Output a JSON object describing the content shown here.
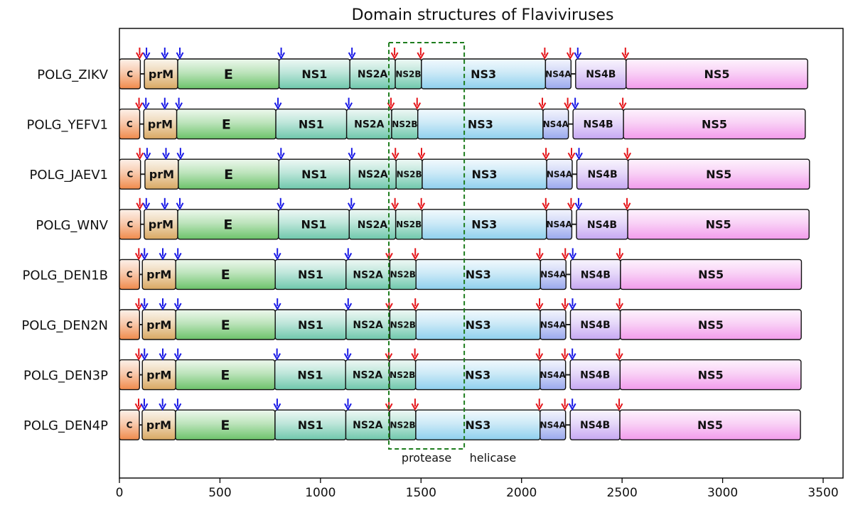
{
  "chart_data": {
    "type": "domain_map",
    "title": "Domain structures of Flaviviruses",
    "xlim": [
      0,
      3550
    ],
    "xticks": [
      0,
      500,
      1000,
      1500,
      2000,
      2500,
      3000,
      3500
    ],
    "grid": false,
    "domain_colors": {
      "C": "#f08a4b",
      "prM": "#d9a862",
      "E": "#6cc36a",
      "NS1": "#6fc8ac",
      "NS2A": "#6fc8ac",
      "NS2B": "#6fc8ac",
      "NS3": "#8fd0ee",
      "NS4A": "#9aa9ee",
      "NS4B": "#c7a8f2",
      "NS5": "#f29bec"
    },
    "arrow_colors": {
      "protease": "#e4161b",
      "host": "#1a1ae6"
    },
    "proteins": [
      {
        "name": "POLG_ZIKV",
        "domains": [
          {
            "label": "C",
            "start": 0,
            "end": 104
          },
          {
            "label": "prM",
            "start": 124,
            "end": 290
          },
          {
            "label": "E",
            "start": 290,
            "end": 794
          },
          {
            "label": "NS1",
            "start": 794,
            "end": 1146
          },
          {
            "label": "NS2A",
            "start": 1146,
            "end": 1372
          },
          {
            "label": "NS2B",
            "start": 1372,
            "end": 1502
          },
          {
            "label": "NS3",
            "start": 1502,
            "end": 2119
          },
          {
            "label": "NS4A",
            "start": 2119,
            "end": 2246
          },
          {
            "label": "NS4B",
            "start": 2269,
            "end": 2520
          },
          {
            "label": "NS5",
            "start": 2520,
            "end": 3423
          }
        ],
        "protease_sites": [
          104,
          1372,
          1502,
          2119,
          2246,
          2520
        ],
        "host_sites": [
          124,
          215,
          290,
          794,
          1146,
          2269
        ]
      },
      {
        "name": "POLG_YEFV1",
        "domains": [
          {
            "label": "C",
            "start": 0,
            "end": 101
          },
          {
            "label": "prM",
            "start": 121,
            "end": 285
          },
          {
            "label": "E",
            "start": 285,
            "end": 778
          },
          {
            "label": "NS1",
            "start": 778,
            "end": 1130
          },
          {
            "label": "NS2A",
            "start": 1130,
            "end": 1354
          },
          {
            "label": "NS2B",
            "start": 1354,
            "end": 1484
          },
          {
            "label": "NS3",
            "start": 1484,
            "end": 2107
          },
          {
            "label": "NS4A",
            "start": 2107,
            "end": 2233
          },
          {
            "label": "NS4B",
            "start": 2256,
            "end": 2507
          },
          {
            "label": "NS5",
            "start": 2507,
            "end": 3411
          }
        ],
        "protease_sites": [
          101,
          1354,
          1484,
          2107,
          2233,
          2507
        ],
        "host_sites": [
          121,
          215,
          285,
          778,
          1130,
          2256
        ]
      },
      {
        "name": "POLG_JAEV1",
        "domains": [
          {
            "label": "C",
            "start": 0,
            "end": 105
          },
          {
            "label": "prM",
            "start": 127,
            "end": 293
          },
          {
            "label": "E",
            "start": 293,
            "end": 793
          },
          {
            "label": "NS1",
            "start": 793,
            "end": 1145
          },
          {
            "label": "NS2A",
            "start": 1145,
            "end": 1376
          },
          {
            "label": "NS2B",
            "start": 1376,
            "end": 1506
          },
          {
            "label": "NS3",
            "start": 1506,
            "end": 2125
          },
          {
            "label": "NS4A",
            "start": 2125,
            "end": 2252
          },
          {
            "label": "NS4B",
            "start": 2275,
            "end": 2530
          },
          {
            "label": "NS5",
            "start": 2530,
            "end": 3432
          }
        ],
        "protease_sites": [
          105,
          1376,
          1506,
          2125,
          2252,
          2530
        ],
        "host_sites": [
          127,
          221,
          293,
          793,
          1145,
          2275
        ]
      },
      {
        "name": "POLG_WNV",
        "domains": [
          {
            "label": "C",
            "start": 0,
            "end": 105
          },
          {
            "label": "prM",
            "start": 123,
            "end": 290
          },
          {
            "label": "E",
            "start": 290,
            "end": 791
          },
          {
            "label": "NS1",
            "start": 791,
            "end": 1143
          },
          {
            "label": "NS2A",
            "start": 1143,
            "end": 1374
          },
          {
            "label": "NS2B",
            "start": 1374,
            "end": 1505
          },
          {
            "label": "NS3",
            "start": 1505,
            "end": 2124
          },
          {
            "label": "NS4A",
            "start": 2124,
            "end": 2250
          },
          {
            "label": "NS4B",
            "start": 2273,
            "end": 2528
          },
          {
            "label": "NS5",
            "start": 2528,
            "end": 3430
          }
        ],
        "protease_sites": [
          105,
          1374,
          1505,
          2124,
          2250,
          2528
        ],
        "host_sites": [
          123,
          215,
          290,
          791,
          1143,
          2273
        ]
      },
      {
        "name": "POLG_DEN1B",
        "domains": [
          {
            "label": "C",
            "start": 0,
            "end": 100
          },
          {
            "label": "prM",
            "start": 114,
            "end": 280
          },
          {
            "label": "E",
            "start": 280,
            "end": 775
          },
          {
            "label": "NS1",
            "start": 775,
            "end": 1127
          },
          {
            "label": "NS2A",
            "start": 1127,
            "end": 1345
          },
          {
            "label": "NS2B",
            "start": 1345,
            "end": 1475
          },
          {
            "label": "NS3",
            "start": 1475,
            "end": 2094
          },
          {
            "label": "NS4A",
            "start": 2094,
            "end": 2221
          },
          {
            "label": "NS4B",
            "start": 2244,
            "end": 2492
          },
          {
            "label": "NS5",
            "start": 2492,
            "end": 3392
          }
        ],
        "protease_sites": [
          100,
          1345,
          1475,
          2094,
          2221,
          2492
        ],
        "host_sites": [
          114,
          205,
          280,
          775,
          1127,
          2244
        ]
      },
      {
        "name": "POLG_DEN2N",
        "domains": [
          {
            "label": "C",
            "start": 0,
            "end": 100
          },
          {
            "label": "prM",
            "start": 114,
            "end": 280
          },
          {
            "label": "E",
            "start": 280,
            "end": 775
          },
          {
            "label": "NS1",
            "start": 775,
            "end": 1127
          },
          {
            "label": "NS2A",
            "start": 1127,
            "end": 1345
          },
          {
            "label": "NS2B",
            "start": 1345,
            "end": 1475
          },
          {
            "label": "NS3",
            "start": 1475,
            "end": 2093
          },
          {
            "label": "NS4A",
            "start": 2093,
            "end": 2220
          },
          {
            "label": "NS4B",
            "start": 2243,
            "end": 2491
          },
          {
            "label": "NS5",
            "start": 2491,
            "end": 3391
          }
        ],
        "protease_sites": [
          100,
          1345,
          1475,
          2093,
          2220,
          2491
        ],
        "host_sites": [
          114,
          205,
          280,
          775,
          1127,
          2243
        ]
      },
      {
        "name": "POLG_DEN3P",
        "domains": [
          {
            "label": "C",
            "start": 0,
            "end": 100
          },
          {
            "label": "prM",
            "start": 114,
            "end": 280
          },
          {
            "label": "E",
            "start": 280,
            "end": 773
          },
          {
            "label": "NS1",
            "start": 773,
            "end": 1125
          },
          {
            "label": "NS2A",
            "start": 1125,
            "end": 1343
          },
          {
            "label": "NS2B",
            "start": 1343,
            "end": 1473
          },
          {
            "label": "NS3",
            "start": 1473,
            "end": 2092
          },
          {
            "label": "NS4A",
            "start": 2092,
            "end": 2219
          },
          {
            "label": "NS4B",
            "start": 2242,
            "end": 2490
          },
          {
            "label": "NS5",
            "start": 2490,
            "end": 3390
          }
        ],
        "protease_sites": [
          100,
          1343,
          1473,
          2092,
          2219,
          2490
        ],
        "host_sites": [
          114,
          205,
          280,
          773,
          1125,
          2242
        ]
      },
      {
        "name": "POLG_DEN4P",
        "domains": [
          {
            "label": "C",
            "start": 0,
            "end": 99
          },
          {
            "label": "prM",
            "start": 113,
            "end": 279
          },
          {
            "label": "E",
            "start": 279,
            "end": 774
          },
          {
            "label": "NS1",
            "start": 774,
            "end": 1126
          },
          {
            "label": "NS2A",
            "start": 1126,
            "end": 1344
          },
          {
            "label": "NS2B",
            "start": 1344,
            "end": 1474
          },
          {
            "label": "NS3",
            "start": 1474,
            "end": 2092
          },
          {
            "label": "NS4A",
            "start": 2092,
            "end": 2219
          },
          {
            "label": "NS4B",
            "start": 2242,
            "end": 2489
          },
          {
            "label": "NS5",
            "start": 2489,
            "end": 3387
          }
        ],
        "protease_sites": [
          99,
          1344,
          1474,
          2092,
          2219,
          2489
        ],
        "host_sites": [
          113,
          204,
          279,
          774,
          1126,
          2242
        ]
      }
    ],
    "annotations": [
      {
        "text": "protease",
        "region": [
          1340,
          1715
        ]
      },
      {
        "text": "helicase",
        "region": [
          1715,
          2000
        ]
      }
    ]
  }
}
